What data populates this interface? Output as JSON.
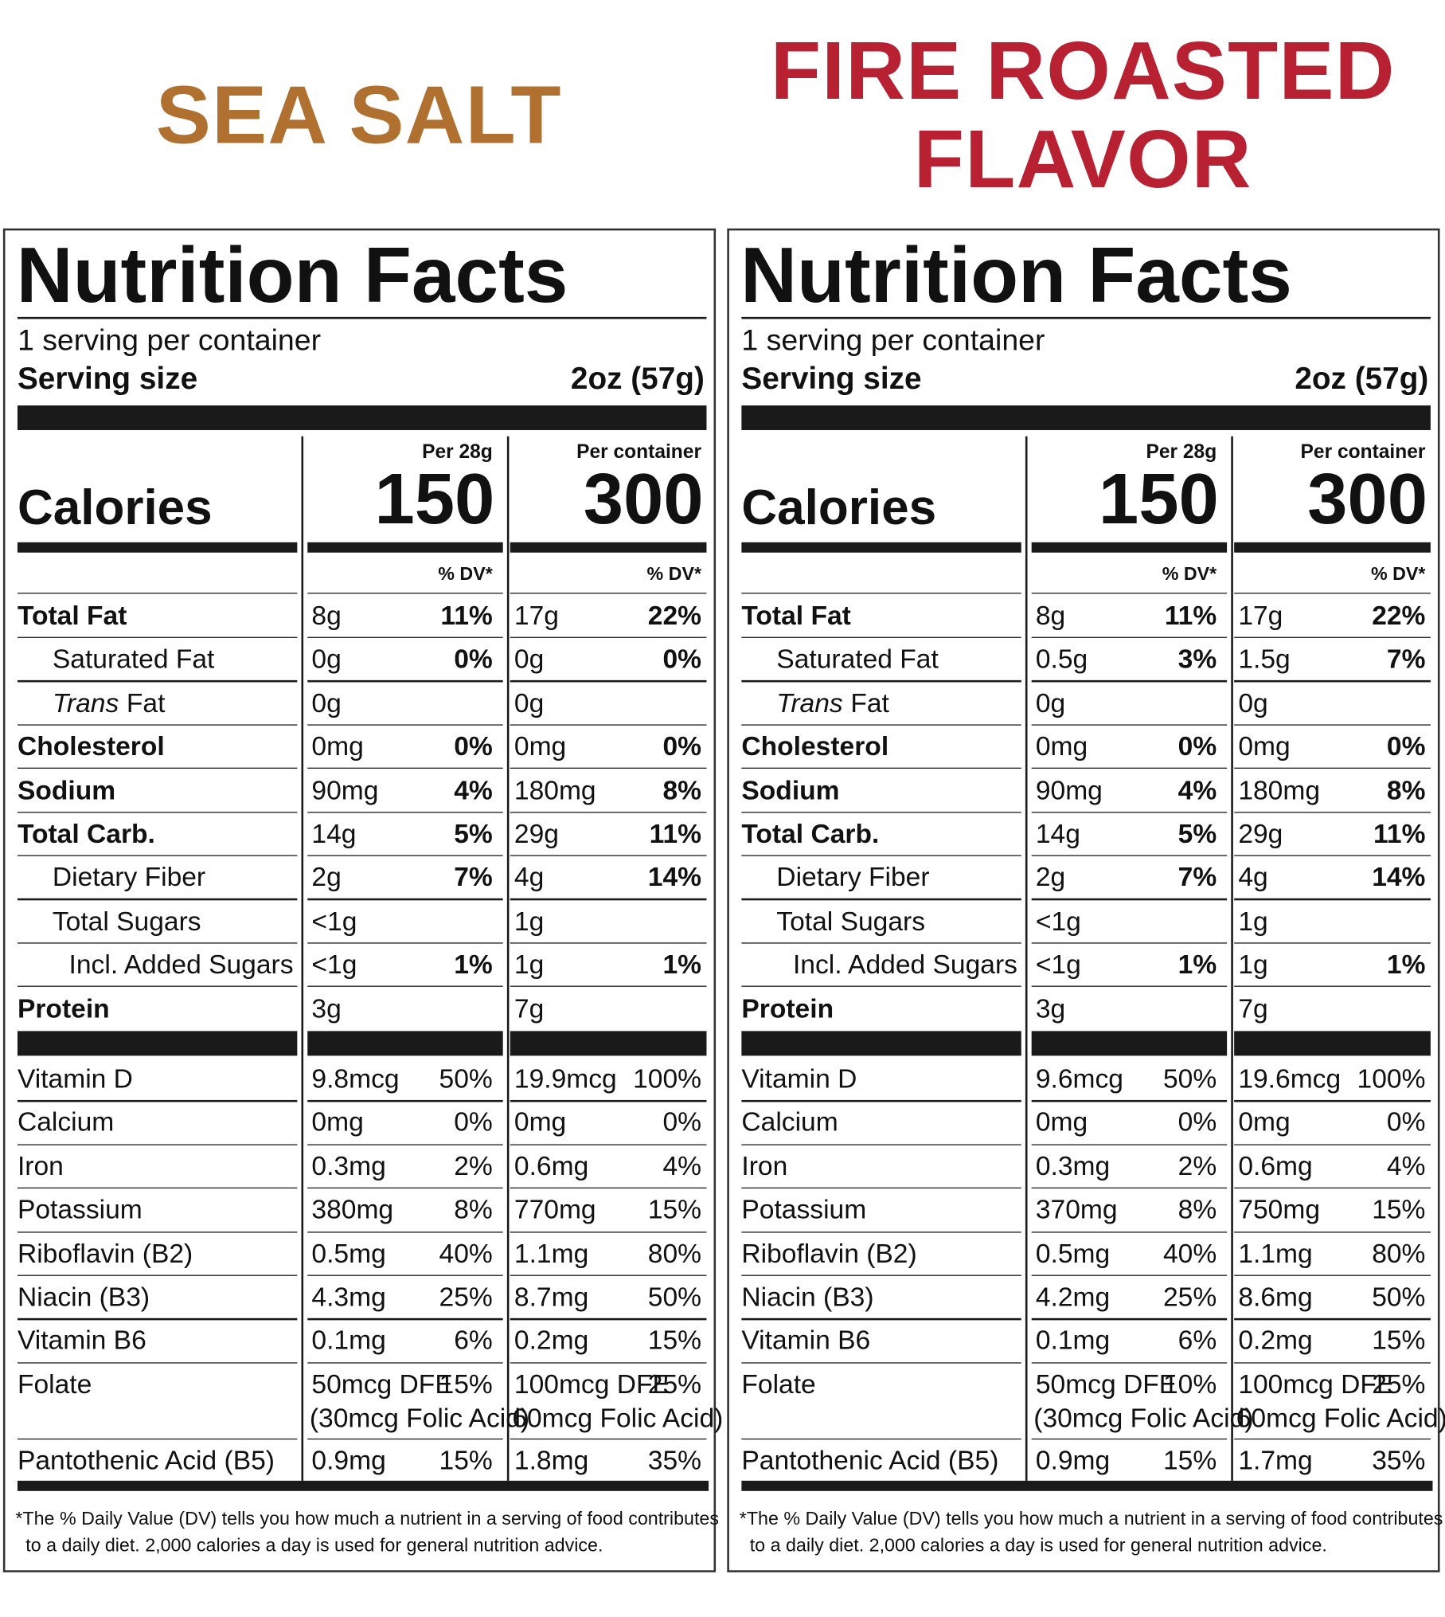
{
  "flavors": [
    {
      "title_lines": [
        "SEA SALT"
      ],
      "title_color": "#b0702f",
      "label": {
        "heading": "Nutrition Facts",
        "servings": "1 serving per container",
        "serving_size_label": "Serving size",
        "serving_size": "2oz (57g)",
        "calories_label": "Calories",
        "columns": [
          {
            "header": "Per 28g",
            "calories": 150,
            "dv_header": "% DV*"
          },
          {
            "header": "Per container",
            "calories": 300,
            "dv_header": "% DV*"
          }
        ],
        "nutrients": [
          {
            "name": "Total Fat",
            "bold": true,
            "indent": 0,
            "amounts": [
              "8g",
              "17g"
            ],
            "dv": [
              "11%",
              "22%"
            ]
          },
          {
            "name": "Saturated Fat",
            "bold": false,
            "indent": 1,
            "amounts": [
              "0g",
              "0g"
            ],
            "dv": [
              "0%",
              "0%"
            ]
          },
          {
            "name_italic": "Trans",
            "name": "Fat",
            "bold": false,
            "indent": 1,
            "amounts": [
              "0g",
              "0g"
            ],
            "dv": [
              null,
              null
            ]
          },
          {
            "name": "Cholesterol",
            "bold": true,
            "indent": 0,
            "amounts": [
              "0mg",
              "0mg"
            ],
            "dv": [
              "0%",
              "0%"
            ]
          },
          {
            "name": "Sodium",
            "bold": true,
            "indent": 0,
            "amounts": [
              "90mg",
              "180mg"
            ],
            "dv": [
              "4%",
              "8%"
            ]
          },
          {
            "name": "Total Carb.",
            "bold": true,
            "indent": 0,
            "amounts": [
              "14g",
              "29g"
            ],
            "dv": [
              "5%",
              "11%"
            ]
          },
          {
            "name": "Dietary Fiber",
            "bold": false,
            "indent": 1,
            "amounts": [
              "2g",
              "4g"
            ],
            "dv": [
              "7%",
              "14%"
            ]
          },
          {
            "name": "Total Sugars",
            "bold": false,
            "indent": 1,
            "amounts": [
              "<1g",
              "1g"
            ],
            "dv": [
              null,
              null
            ]
          },
          {
            "name": "Incl. Added Sugars",
            "bold": false,
            "indent": 2,
            "amounts": [
              "<1g",
              "1g"
            ],
            "dv": [
              "1%",
              "1%"
            ]
          },
          {
            "name": "Protein",
            "bold": true,
            "indent": 0,
            "amounts": [
              "3g",
              "7g"
            ],
            "dv": [
              null,
              null
            ]
          }
        ],
        "vitamins": [
          {
            "name": "Vitamin D",
            "amounts": [
              "9.8mcg",
              "19.9mcg"
            ],
            "dv": [
              "50%",
              "100%"
            ]
          },
          {
            "name": "Calcium",
            "amounts": [
              "0mg",
              "0mg"
            ],
            "dv": [
              "0%",
              "0%"
            ]
          },
          {
            "name": "Iron",
            "amounts": [
              "0.3mg",
              "0.6mg"
            ],
            "dv": [
              "2%",
              "4%"
            ]
          },
          {
            "name": "Potassium",
            "amounts": [
              "380mg",
              "770mg"
            ],
            "dv": [
              "8%",
              "15%"
            ]
          },
          {
            "name": "Riboflavin (B2)",
            "amounts": [
              "0.5mg",
              "1.1mg"
            ],
            "dv": [
              "40%",
              "80%"
            ]
          },
          {
            "name": "Niacin (B3)",
            "amounts": [
              "4.3mg",
              "8.7mg"
            ],
            "dv": [
              "25%",
              "50%"
            ]
          },
          {
            "name": "Vitamin B6",
            "amounts": [
              "0.1mg",
              "0.2mg"
            ],
            "dv": [
              "6%",
              "15%"
            ]
          },
          {
            "name": "Folate",
            "amounts": [
              "50mcg DFE",
              "100mcg DFE"
            ],
            "dv": [
              "15%",
              "25%"
            ],
            "sub": [
              "(30mcg Folic Acid)",
              "60mcg Folic Acid)"
            ]
          },
          {
            "name": "Pantothenic Acid (B5)",
            "amounts": [
              "0.9mg",
              "1.8mg"
            ],
            "dv": [
              "15%",
              "35%"
            ]
          }
        ],
        "footnote": [
          "*The % Daily Value (DV) tells you how much a nutrient in a serving of food contributes",
          "to a daily diet. 2,000 calories a day is used for general nutrition advice."
        ]
      }
    },
    {
      "title_lines": [
        "FIRE ROASTED",
        "FLAVOR"
      ],
      "title_color": "#b82131",
      "label": {
        "heading": "Nutrition Facts",
        "servings": "1 serving per container",
        "serving_size_label": "Serving size",
        "serving_size": "2oz (57g)",
        "calories_label": "Calories",
        "columns": [
          {
            "header": "Per 28g",
            "calories": 150,
            "dv_header": "% DV*"
          },
          {
            "header": "Per container",
            "calories": 300,
            "dv_header": "% DV*"
          }
        ],
        "nutrients": [
          {
            "name": "Total Fat",
            "bold": true,
            "indent": 0,
            "amounts": [
              "8g",
              "17g"
            ],
            "dv": [
              "11%",
              "22%"
            ]
          },
          {
            "name": "Saturated Fat",
            "bold": false,
            "indent": 1,
            "amounts": [
              "0.5g",
              "1.5g"
            ],
            "dv": [
              "3%",
              "7%"
            ]
          },
          {
            "name_italic": "Trans",
            "name": "Fat",
            "bold": false,
            "indent": 1,
            "amounts": [
              "0g",
              "0g"
            ],
            "dv": [
              null,
              null
            ]
          },
          {
            "name": "Cholesterol",
            "bold": true,
            "indent": 0,
            "amounts": [
              "0mg",
              "0mg"
            ],
            "dv": [
              "0%",
              "0%"
            ]
          },
          {
            "name": "Sodium",
            "bold": true,
            "indent": 0,
            "amounts": [
              "90mg",
              "180mg"
            ],
            "dv": [
              "4%",
              "8%"
            ]
          },
          {
            "name": "Total Carb.",
            "bold": true,
            "indent": 0,
            "amounts": [
              "14g",
              "29g"
            ],
            "dv": [
              "5%",
              "11%"
            ]
          },
          {
            "name": "Dietary Fiber",
            "bold": false,
            "indent": 1,
            "amounts": [
              "2g",
              "4g"
            ],
            "dv": [
              "7%",
              "14%"
            ]
          },
          {
            "name": "Total Sugars",
            "bold": false,
            "indent": 1,
            "amounts": [
              "<1g",
              "1g"
            ],
            "dv": [
              null,
              null
            ]
          },
          {
            "name": "Incl. Added Sugars",
            "bold": false,
            "indent": 2,
            "amounts": [
              "<1g",
              "1g"
            ],
            "dv": [
              "1%",
              "1%"
            ]
          },
          {
            "name": "Protein",
            "bold": true,
            "indent": 0,
            "amounts": [
              "3g",
              "7g"
            ],
            "dv": [
              null,
              null
            ]
          }
        ],
        "vitamins": [
          {
            "name": "Vitamin D",
            "amounts": [
              "9.6mcg",
              "19.6mcg"
            ],
            "dv": [
              "50%",
              "100%"
            ]
          },
          {
            "name": "Calcium",
            "amounts": [
              "0mg",
              "0mg"
            ],
            "dv": [
              "0%",
              "0%"
            ]
          },
          {
            "name": "Iron",
            "amounts": [
              "0.3mg",
              "0.6mg"
            ],
            "dv": [
              "2%",
              "4%"
            ]
          },
          {
            "name": "Potassium",
            "amounts": [
              "370mg",
              "750mg"
            ],
            "dv": [
              "8%",
              "15%"
            ]
          },
          {
            "name": "Riboflavin (B2)",
            "amounts": [
              "0.5mg",
              "1.1mg"
            ],
            "dv": [
              "40%",
              "80%"
            ]
          },
          {
            "name": "Niacin (B3)",
            "amounts": [
              "4.2mg",
              "8.6mg"
            ],
            "dv": [
              "25%",
              "50%"
            ]
          },
          {
            "name": "Vitamin B6",
            "amounts": [
              "0.1mg",
              "0.2mg"
            ],
            "dv": [
              "6%",
              "15%"
            ]
          },
          {
            "name": "Folate",
            "amounts": [
              "50mcg DFE",
              "100mcg DFE"
            ],
            "dv": [
              "10%",
              "25%"
            ],
            "sub": [
              "(30mcg Folic Acid)",
              "60mcg Folic Acid)"
            ]
          },
          {
            "name": "Pantothenic Acid (B5)",
            "amounts": [
              "0.9mg",
              "1.7mg"
            ],
            "dv": [
              "15%",
              "35%"
            ]
          }
        ],
        "footnote": [
          "*The % Daily Value (DV) tells you how much a nutrient in a serving of food contributes",
          "to a daily diet. 2,000 calories a day is used for general nutrition advice."
        ]
      }
    }
  ]
}
